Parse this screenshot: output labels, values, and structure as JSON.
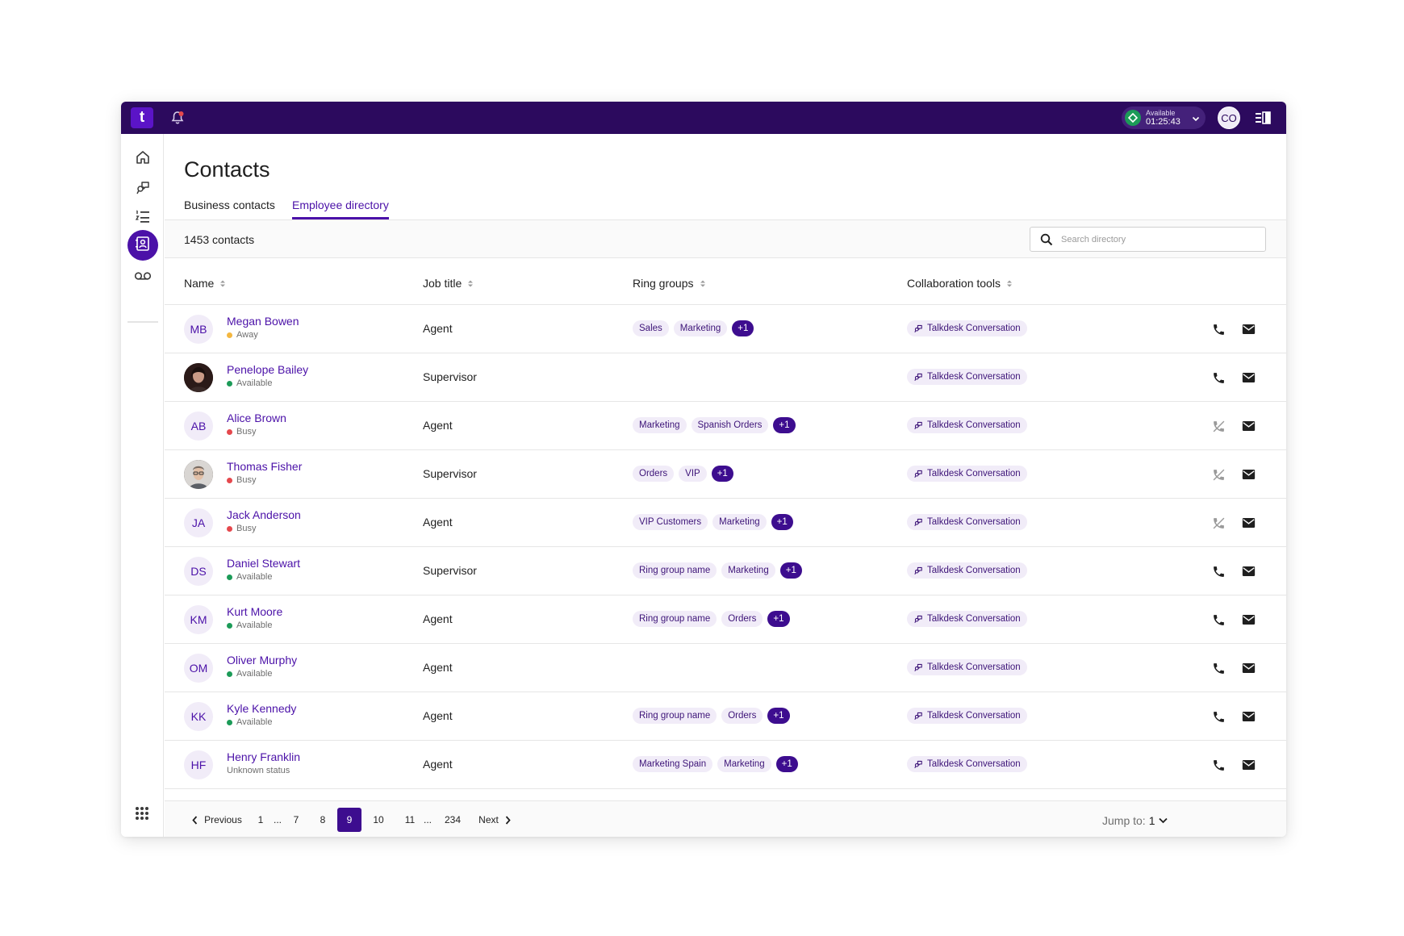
{
  "topbar": {
    "logo": "t",
    "status_label": "Available",
    "status_time": "01:25:43",
    "user_initials": "CO"
  },
  "page": {
    "title": "Contacts",
    "tabs": [
      {
        "label": "Business contacts",
        "active": false
      },
      {
        "label": "Employee directory",
        "active": true
      }
    ],
    "count": "1453 contacts",
    "search_placeholder": "Search directory"
  },
  "table": {
    "columns": [
      "Name",
      "Job title",
      "Ring groups",
      "Collaboration tools"
    ],
    "rows": [
      {
        "initials": "MB",
        "photo": false,
        "name": "Megan Bowen",
        "status": "Away",
        "status_color": "#f4b740",
        "job": "Agent",
        "groups": [
          "Sales",
          "Marketing"
        ],
        "more": "+1",
        "collab": "Talkdesk Conversation",
        "phone_enabled": true
      },
      {
        "initials": "",
        "photo": true,
        "name": "Penelope Bailey",
        "status": "Available",
        "status_color": "#1c9b58",
        "job": "Supervisor",
        "groups": [],
        "more": "",
        "collab": "Talkdesk Conversation",
        "phone_enabled": true
      },
      {
        "initials": "AB",
        "photo": false,
        "name": "Alice Brown",
        "status": "Busy",
        "status_color": "#e5484d",
        "job": "Agent",
        "groups": [
          "Marketing",
          "Spanish Orders"
        ],
        "more": "+1",
        "collab": "Talkdesk Conversation",
        "phone_enabled": false
      },
      {
        "initials": "",
        "photo": true,
        "name": "Thomas Fisher",
        "status": "Busy",
        "status_color": "#e5484d",
        "job": "Supervisor",
        "groups": [
          "Orders",
          "VIP"
        ],
        "more": "+1",
        "collab": "Talkdesk Conversation",
        "phone_enabled": false
      },
      {
        "initials": "JA",
        "photo": false,
        "name": "Jack Anderson",
        "status": "Busy",
        "status_color": "#e5484d",
        "job": "Agent",
        "groups": [
          "VIP Customers",
          "Marketing"
        ],
        "more": "+1",
        "collab": "Talkdesk Conversation",
        "phone_enabled": false
      },
      {
        "initials": "DS",
        "photo": false,
        "name": "Daniel Stewart",
        "status": "Available",
        "status_color": "#1c9b58",
        "job": "Supervisor",
        "groups": [
          "Ring group name",
          "Marketing"
        ],
        "more": "+1",
        "collab": "Talkdesk Conversation",
        "phone_enabled": true
      },
      {
        "initials": "KM",
        "photo": false,
        "name": "Kurt Moore",
        "status": "Available",
        "status_color": "#1c9b58",
        "job": "Agent",
        "groups": [
          "Ring group name",
          "Orders"
        ],
        "more": "+1",
        "collab": "Talkdesk Conversation",
        "phone_enabled": true
      },
      {
        "initials": "OM",
        "photo": false,
        "name": "Oliver Murphy",
        "status": "Available",
        "status_color": "#1c9b58",
        "job": "Agent",
        "groups": [],
        "more": "",
        "collab": "Talkdesk Conversation",
        "phone_enabled": true
      },
      {
        "initials": "KK",
        "photo": false,
        "name": "Kyle Kennedy",
        "status": "Available",
        "status_color": "#1c9b58",
        "job": "Agent",
        "groups": [
          "Ring group name",
          "Orders"
        ],
        "more": "+1",
        "collab": "Talkdesk Conversation",
        "phone_enabled": true
      },
      {
        "initials": "HF",
        "photo": false,
        "name": "Henry Franklin",
        "status": "Unknown status",
        "status_color": "",
        "job": "Agent",
        "groups": [
          "Marketing Spain",
          "Marketing"
        ],
        "more": "+1",
        "collab": "Talkdesk Conversation",
        "phone_enabled": true
      }
    ]
  },
  "pagination": {
    "previous": "Previous",
    "next": "Next",
    "pages": [
      "1",
      "...",
      "7",
      "8",
      "9",
      "10",
      "11",
      "...",
      "234"
    ],
    "current": "9",
    "jump_label": "Jump to:",
    "jump_value": "1"
  },
  "colors": {
    "topbar": "#2c0a5e",
    "accent": "#4b11a8",
    "available": "#1c9b58",
    "away": "#f4b740",
    "busy": "#e5484d"
  }
}
